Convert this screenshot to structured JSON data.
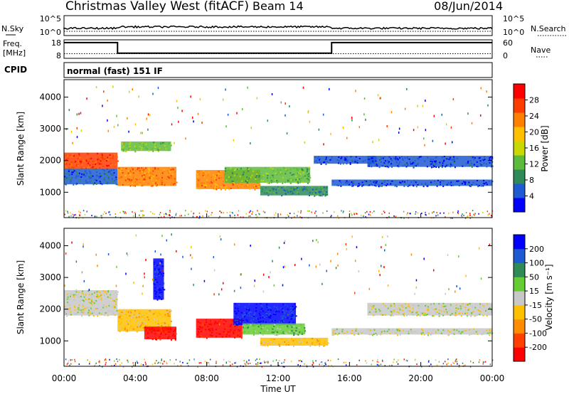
{
  "header": {
    "station": "Christmas Valley West (fitACF)",
    "beam": "Beam 14",
    "date": "08/Jun/2014"
  },
  "noise_panel": {
    "left_label": "N.Sky",
    "left_ticks": [
      "10^5",
      "10^0"
    ],
    "right_ticks": [
      "10^5",
      "10^0"
    ],
    "right_label": "N.Search"
  },
  "freq_panel": {
    "left_label_1": "Freq.",
    "left_label_2": "[MHz]",
    "left_ticks": [
      "18",
      "8"
    ],
    "right_ticks": [
      "60",
      "0"
    ],
    "right_label": "Nave"
  },
  "cpid": {
    "label": "CPID",
    "text": "normal (fast) 151 IF"
  },
  "colors": {
    "power_scale": [
      "#0000ff",
      "#1e5ad2",
      "#2e8b57",
      "#5dbb3c",
      "#c8d800",
      "#ffc000",
      "#ff8000",
      "#ff3c00",
      "#ff0000"
    ],
    "velocity_scale": [
      "#ff0000",
      "#ff4000",
      "#ff8c00",
      "#ffc000",
      "#c8c8c8",
      "#66cc33",
      "#2e8b57",
      "#1e5ad2",
      "#0000ff"
    ]
  },
  "chart_data": [
    {
      "type": "heatmap",
      "name": "power",
      "ylabel": "Slant Range [km]",
      "yticks": [
        "1000",
        "2000",
        "3000",
        "4000"
      ],
      "ylim": [
        200,
        4550
      ],
      "colorbar_label": "Power [dB]",
      "colorbar_ticks": [
        "28",
        "24",
        "20",
        "16",
        "12",
        "8",
        "4"
      ],
      "colorbar_range": [
        0,
        32
      ],
      "xlim": [
        0,
        24
      ],
      "regions": [
        {
          "t0": 0.0,
          "t1": 3.0,
          "r0": 1750,
          "r1": 2250,
          "value": 26
        },
        {
          "t0": 0.0,
          "t1": 3.0,
          "r0": 1250,
          "r1": 1750,
          "value": 6
        },
        {
          "t0": 3.0,
          "t1": 6.3,
          "r0": 1200,
          "r1": 1800,
          "value": 24
        },
        {
          "t0": 3.2,
          "t1": 6.0,
          "r0": 2300,
          "r1": 2600,
          "value": 14
        },
        {
          "t0": 7.4,
          "t1": 11.0,
          "r0": 1100,
          "r1": 1700,
          "value": 22
        },
        {
          "t0": 9.0,
          "t1": 13.8,
          "r0": 1300,
          "r1": 1800,
          "value": 12
        },
        {
          "t0": 11.0,
          "t1": 14.8,
          "r0": 900,
          "r1": 1200,
          "value": 8
        },
        {
          "t0": 14.0,
          "t1": 17.5,
          "r0": 1900,
          "r1": 2150,
          "value": 4
        },
        {
          "t0": 15.0,
          "t1": 24.0,
          "r0": 1200,
          "r1": 1400,
          "value": 4
        },
        {
          "t0": 17.0,
          "t1": 24.0,
          "r0": 1800,
          "r1": 2150,
          "value": 4
        }
      ]
    },
    {
      "type": "heatmap",
      "name": "velocity",
      "ylabel": "Slant Range [km]",
      "yticks": [
        "1000",
        "2000",
        "3000",
        "4000"
      ],
      "ylim": [
        200,
        4550
      ],
      "colorbar_label": "Velocity [m s⁻¹]",
      "colorbar_ticks": [
        "200",
        "100",
        "50",
        "15",
        "-15",
        "-50",
        "-100",
        "-200"
      ],
      "colorbar_range": [
        -250,
        250
      ],
      "xlim": [
        0,
        24
      ],
      "xticks": [
        "00:00",
        "04:00",
        "08:00",
        "12:00",
        "16:00",
        "20:00",
        "00:00"
      ],
      "xlabel": "Time UT",
      "regions": [
        {
          "t0": 0.0,
          "t1": 3.0,
          "r0": 1800,
          "r1": 2600,
          "value": 0
        },
        {
          "t0": 3.0,
          "t1": 6.0,
          "r0": 1300,
          "r1": 2000,
          "value": -60
        },
        {
          "t0": 4.5,
          "t1": 6.3,
          "r0": 1050,
          "r1": 1450,
          "value": -220
        },
        {
          "t0": 5.0,
          "t1": 5.6,
          "r0": 2300,
          "r1": 3600,
          "value": 220
        },
        {
          "t0": 7.4,
          "t1": 10.0,
          "r0": 1100,
          "r1": 1700,
          "value": -200
        },
        {
          "t0": 9.5,
          "t1": 13.0,
          "r0": 1500,
          "r1": 2200,
          "value": 200
        },
        {
          "t0": 10.0,
          "t1": 13.5,
          "r0": 1200,
          "r1": 1550,
          "value": 60
        },
        {
          "t0": 11.0,
          "t1": 14.8,
          "r0": 850,
          "r1": 1100,
          "value": -60
        },
        {
          "t0": 15.0,
          "t1": 24.0,
          "r0": 1200,
          "r1": 1400,
          "value": 0
        },
        {
          "t0": 17.0,
          "t1": 24.0,
          "r0": 1800,
          "r1": 2200,
          "value": 0
        }
      ]
    },
    {
      "type": "line",
      "name": "frequency",
      "x": [
        0,
        3.0,
        3.0,
        15.0,
        15.0,
        24
      ],
      "y": [
        16.5,
        16.5,
        10.8,
        10.8,
        16.5,
        16.5
      ],
      "xlim": [
        0,
        24
      ],
      "ylim": [
        8,
        18
      ]
    },
    {
      "type": "line",
      "name": "nave",
      "x": [
        0,
        24
      ],
      "y": [
        15,
        15
      ],
      "xlim": [
        0,
        24
      ],
      "ylim": [
        0,
        60
      ]
    }
  ]
}
